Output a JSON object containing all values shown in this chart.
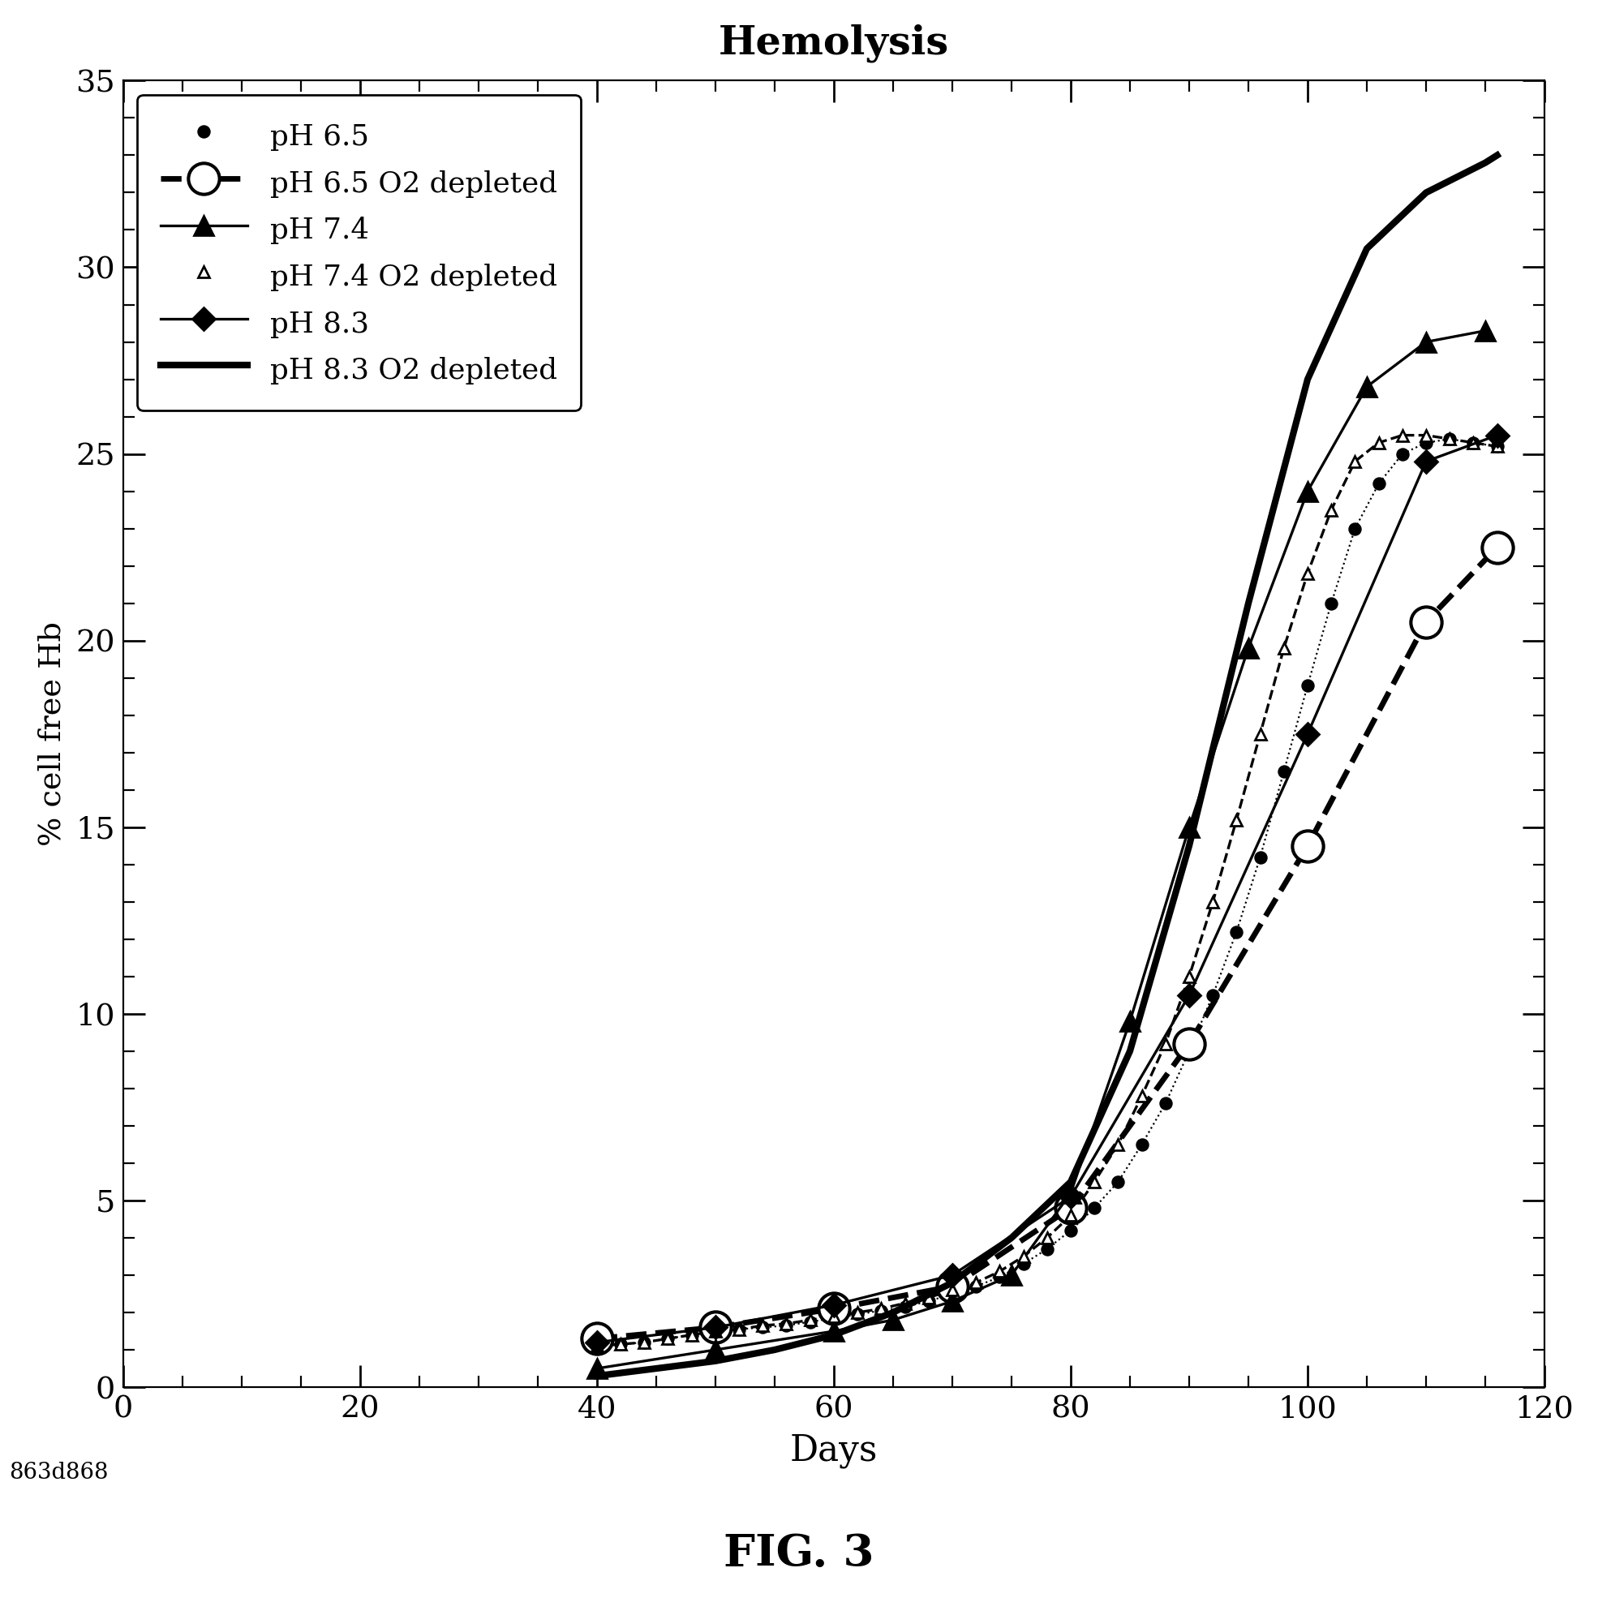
{
  "title": "Hemolysis",
  "xlabel": "Days",
  "ylabel": "% cell free Hb",
  "fig_label": "FIG. 3",
  "watermark": "863d868",
  "xlim": [
    0,
    120
  ],
  "ylim": [
    0,
    35
  ],
  "xticks": [
    0,
    20,
    40,
    60,
    80,
    100,
    120
  ],
  "yticks": [
    0,
    5,
    10,
    15,
    20,
    25,
    30,
    35
  ],
  "series": [
    {
      "label": "pH 6.5",
      "linestyle": "none",
      "linewidth": 0,
      "marker": "o",
      "markersize": 5,
      "markerfacecolor": "black",
      "markeredgecolor": "black",
      "color": "black",
      "connect": true,
      "connect_lw": 0.8,
      "connect_ls": ":",
      "x": [
        40,
        42,
        44,
        46,
        48,
        50,
        52,
        54,
        56,
        58,
        60,
        62,
        64,
        66,
        68,
        70,
        72,
        74,
        76,
        78,
        80,
        82,
        84,
        86,
        88,
        90,
        92,
        94,
        96,
        98,
        100,
        102,
        104,
        106,
        108,
        110,
        112,
        114,
        116
      ],
      "y": [
        1.1,
        1.15,
        1.2,
        1.3,
        1.4,
        1.5,
        1.55,
        1.6,
        1.65,
        1.75,
        1.85,
        1.95,
        2.05,
        2.15,
        2.3,
        2.5,
        2.7,
        2.95,
        3.3,
        3.7,
        4.2,
        4.8,
        5.5,
        6.5,
        7.6,
        9.0,
        10.5,
        12.2,
        14.2,
        16.5,
        18.8,
        21.0,
        23.0,
        24.2,
        25.0,
        25.3,
        25.4,
        25.3,
        25.2
      ]
    },
    {
      "label": "pH 6.5 O2 depleted",
      "linestyle": "--",
      "linewidth": 2.5,
      "marker": "o",
      "markersize": 14,
      "markerfacecolor": "white",
      "markeredgecolor": "black",
      "markeredgewidth": 1.5,
      "color": "black",
      "connect": false,
      "x": [
        40,
        50,
        60,
        70,
        80,
        90,
        100,
        110,
        116
      ],
      "y": [
        1.3,
        1.6,
        2.1,
        2.7,
        4.8,
        9.2,
        14.5,
        20.5,
        22.5
      ]
    },
    {
      "label": "pH 7.4",
      "linestyle": "-",
      "linewidth": 1.2,
      "marker": "^",
      "markersize": 9,
      "markerfacecolor": "black",
      "markeredgecolor": "black",
      "color": "black",
      "connect": false,
      "x": [
        40,
        50,
        60,
        65,
        70,
        75,
        80,
        85,
        90,
        95,
        100,
        105,
        110,
        115
      ],
      "y": [
        0.5,
        1.0,
        1.5,
        1.8,
        2.3,
        3.0,
        5.2,
        9.8,
        15.0,
        19.8,
        24.0,
        26.8,
        28.0,
        28.3
      ]
    },
    {
      "label": "pH 7.4 O2 depleted",
      "linestyle": "none",
      "linewidth": 0,
      "marker": "^",
      "markersize": 5,
      "markerfacecolor": "white",
      "markeredgecolor": "black",
      "markeredgewidth": 1.0,
      "color": "black",
      "connect": true,
      "connect_lw": 1.2,
      "connect_ls": "--",
      "x": [
        40,
        42,
        44,
        46,
        48,
        50,
        52,
        54,
        56,
        58,
        60,
        62,
        64,
        66,
        68,
        70,
        72,
        74,
        76,
        78,
        80,
        82,
        84,
        86,
        88,
        90,
        92,
        94,
        96,
        98,
        100,
        102,
        104,
        106,
        108,
        110,
        112,
        114,
        116
      ],
      "y": [
        1.1,
        1.15,
        1.2,
        1.3,
        1.4,
        1.5,
        1.55,
        1.65,
        1.7,
        1.8,
        1.9,
        2.0,
        2.1,
        2.25,
        2.4,
        2.6,
        2.8,
        3.1,
        3.5,
        4.0,
        4.6,
        5.5,
        6.5,
        7.8,
        9.2,
        11.0,
        13.0,
        15.2,
        17.5,
        19.8,
        21.8,
        23.5,
        24.8,
        25.3,
        25.5,
        25.5,
        25.4,
        25.3,
        25.2
      ]
    },
    {
      "label": "pH 8.3",
      "linestyle": "-",
      "linewidth": 1.2,
      "marker": "D",
      "markersize": 7,
      "markerfacecolor": "black",
      "markeredgecolor": "black",
      "color": "black",
      "connect": false,
      "x": [
        40,
        50,
        60,
        70,
        80,
        90,
        100,
        110,
        116
      ],
      "y": [
        1.2,
        1.6,
        2.2,
        3.0,
        5.1,
        10.5,
        17.5,
        24.8,
        25.5
      ]
    },
    {
      "label": "pH 8.3 O2 depleted",
      "linestyle": "-",
      "linewidth": 3.0,
      "marker": "None",
      "markersize": 0,
      "markerfacecolor": "black",
      "markeredgecolor": "black",
      "color": "black",
      "connect": false,
      "x": [
        40,
        45,
        50,
        55,
        60,
        65,
        70,
        75,
        80,
        85,
        90,
        95,
        100,
        105,
        110,
        115,
        116
      ],
      "y": [
        0.3,
        0.5,
        0.7,
        1.0,
        1.4,
        2.0,
        2.8,
        4.0,
        5.5,
        9.0,
        14.5,
        21.0,
        27.0,
        30.5,
        32.0,
        32.8,
        33.0
      ]
    }
  ]
}
